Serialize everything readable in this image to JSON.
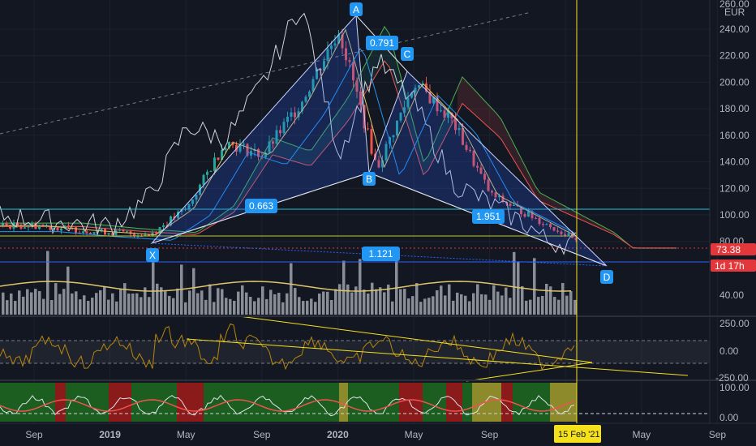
{
  "header": {
    "currency": "EUR",
    "top_label": "260.00"
  },
  "price_axis": {
    "ticks": [
      "240.00",
      "220.00",
      "200.00",
      "180.00",
      "160.00",
      "140.00",
      "120.00",
      "100.00",
      "80.00",
      "40.00"
    ],
    "last_price": "73.38",
    "countdown": "1d 17h"
  },
  "time_axis": {
    "labels": [
      "Sep",
      "2019",
      "May",
      "Sep",
      "2020",
      "May",
      "Sep",
      "2021",
      "May",
      "Sep"
    ],
    "cursor_date": "15 Feb '21"
  },
  "oscillator_1": {
    "ticks": [
      "250.00",
      "0.00",
      "-250.00"
    ]
  },
  "oscillator_2": {
    "ticks": [
      "100.00",
      "0.00"
    ]
  },
  "pattern": {
    "points": [
      "X",
      "A",
      "B",
      "C",
      "D"
    ],
    "ratios": [
      "0.791",
      "0.663",
      "1.951",
      "1.121"
    ]
  },
  "colors": {
    "background": "#131722",
    "up_candle": "#26a69a",
    "down_candle": "#ef5350",
    "pattern_fill": "#2962ff",
    "pattern_label": "#2196f3",
    "cursor": "#f5e11b",
    "price_tag": "#e3383b"
  },
  "chart_data": {
    "type": "candlestick",
    "pattern_points": [
      {
        "label": "X",
        "date": "2019-03",
        "price": 85
      },
      {
        "label": "A",
        "date": "2020-01",
        "price": 248
      },
      {
        "label": "B",
        "date": "2020-03",
        "price": 132
      },
      {
        "label": "C",
        "date": "2020-05",
        "price": 210
      },
      {
        "label": "D",
        "date": "2021-04",
        "price": 60
      }
    ],
    "close_approx": [
      {
        "date": "2018-09",
        "value": 92
      },
      {
        "date": "2018-12",
        "value": 88
      },
      {
        "date": "2019-03",
        "value": 85
      },
      {
        "date": "2019-05",
        "value": 105
      },
      {
        "date": "2019-07",
        "value": 155
      },
      {
        "date": "2019-09",
        "value": 145
      },
      {
        "date": "2019-11",
        "value": 185
      },
      {
        "date": "2020-01",
        "value": 240
      },
      {
        "date": "2020-03",
        "value": 135
      },
      {
        "date": "2020-05",
        "value": 200
      },
      {
        "date": "2020-07",
        "value": 170
      },
      {
        "date": "2020-09",
        "value": 115
      },
      {
        "date": "2020-11",
        "value": 100
      },
      {
        "date": "2021-01",
        "value": 85
      },
      {
        "date": "2021-02",
        "value": 73.38
      }
    ],
    "ylim": [
      30,
      262
    ],
    "y_scale": "linear",
    "grid": true
  }
}
